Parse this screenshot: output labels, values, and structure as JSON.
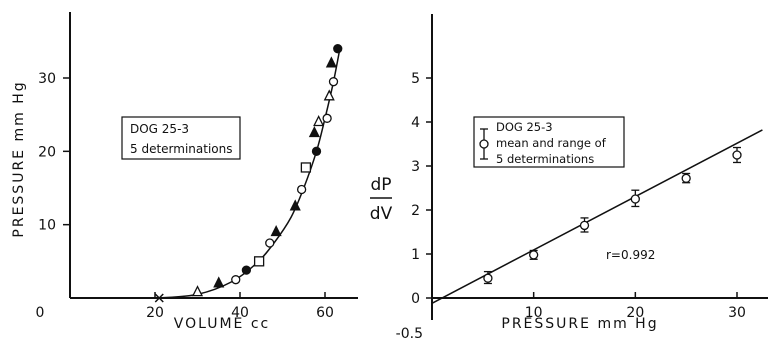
{
  "chart_data": [
    {
      "type": "scatter",
      "title": "",
      "xlabel": "VOLUME cc",
      "ylabel": "PRESSURE mm Hg",
      "xlim": [
        0,
        65
      ],
      "ylim": [
        0,
        36
      ],
      "x_ticks": [
        "0",
        "20",
        "40",
        "60"
      ],
      "x_tick_values": [
        0,
        20,
        40,
        60
      ],
      "y_ticks": [
        "10",
        "20",
        "30"
      ],
      "y_tick_values": [
        10,
        20,
        30
      ],
      "legend_lines": [
        "DOG 25-3",
        "5 determinations"
      ],
      "legend_position": "upper-left",
      "grid": false,
      "zero_marker": {
        "x": 21,
        "y": 0,
        "symbol": "x"
      },
      "series": [
        {
          "marker": "open-triangle",
          "values": [
            [
              30,
              0.8
            ],
            [
              58.5,
              24
            ],
            [
              61,
              27.5
            ]
          ]
        },
        {
          "marker": "filled-triangle",
          "values": [
            [
              35,
              2
            ],
            [
              48.5,
              9
            ],
            [
              53,
              12.5
            ],
            [
              57.5,
              22.5
            ],
            [
              61.5,
              32
            ]
          ]
        },
        {
          "marker": "open-circle",
          "values": [
            [
              39,
              2.5
            ],
            [
              47,
              7.5
            ],
            [
              54.5,
              14.8
            ],
            [
              60.5,
              24.5
            ],
            [
              62,
              29.5
            ]
          ]
        },
        {
          "marker": "filled-circle",
          "values": [
            [
              41.5,
              3.8
            ],
            [
              58,
              20
            ],
            [
              63,
              34
            ]
          ]
        },
        {
          "marker": "open-square",
          "values": [
            [
              44.5,
              5
            ],
            [
              55.5,
              17.8
            ]
          ]
        }
      ],
      "curve": [
        [
          21,
          0
        ],
        [
          30,
          0.5
        ],
        [
          38,
          2.2
        ],
        [
          44,
          4.8
        ],
        [
          48,
          7.5
        ],
        [
          52,
          11
        ],
        [
          55,
          15
        ],
        [
          58,
          20
        ],
        [
          60,
          24.5
        ],
        [
          62,
          29.5
        ],
        [
          63.5,
          34
        ]
      ]
    },
    {
      "type": "scatter",
      "title": "",
      "xlabel": "PRESSURE mm Hg",
      "ylabel_top": "dP",
      "ylabel_bottom": "dV",
      "xlim": [
        0,
        32
      ],
      "ylim": [
        -0.5,
        5.5
      ],
      "x_ticks": [
        "10",
        "20",
        "30"
      ],
      "x_tick_values": [
        10,
        20,
        30
      ],
      "y_ticks": [
        "-0.5",
        "0",
        "1",
        "2",
        "3",
        "4",
        "5"
      ],
      "y_tick_values": [
        -0.5,
        0,
        1,
        2,
        3,
        4,
        5
      ],
      "legend_lines": [
        "DOG 25-3",
        "mean and range of",
        "5 determinations"
      ],
      "legend_position": "upper-left",
      "annotation": "r=0.992",
      "grid": false,
      "series": [
        {
          "marker": "open-circle-errorbar",
          "values": [
            {
              "x": 5.5,
              "y": 0.45,
              "low": 0.33,
              "high": 0.6
            },
            {
              "x": 10,
              "y": 0.98,
              "low": 0.88,
              "high": 1.08
            },
            {
              "x": 15,
              "y": 1.65,
              "low": 1.5,
              "high": 1.82
            },
            {
              "x": 20,
              "y": 2.25,
              "low": 2.08,
              "high": 2.45
            },
            {
              "x": 25,
              "y": 2.72,
              "low": 2.62,
              "high": 2.83
            },
            {
              "x": 30,
              "y": 3.25,
              "low": 3.08,
              "high": 3.42
            }
          ]
        }
      ],
      "regression_line": [
        [
          0,
          -0.12
        ],
        [
          32.5,
          3.82
        ]
      ]
    }
  ]
}
